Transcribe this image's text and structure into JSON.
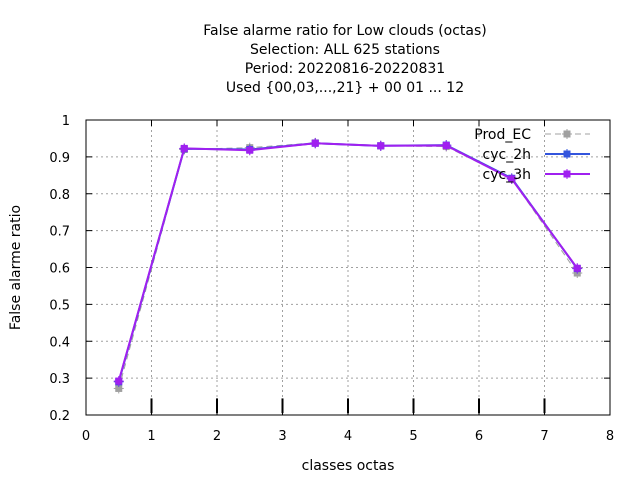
{
  "chart_data": {
    "type": "line",
    "title": [
      "False alarme ratio  for Low clouds (octas)",
      "Selection: ALL    625 stations",
      "Period: 20220816-20220831",
      "Used {00,03,...,21} + 00 01 ... 12"
    ],
    "xlabel": "classes octas",
    "ylabel": "False alarme ratio",
    "xlim": [
      0,
      8
    ],
    "ylim": [
      0.2,
      1.0
    ],
    "xticks": [
      0,
      1,
      2,
      3,
      4,
      5,
      6,
      7,
      8
    ],
    "xtick_labels": [
      "0",
      "1",
      "2",
      "3",
      "4",
      "5",
      "6",
      "7",
      "8"
    ],
    "yticks": [
      0.2,
      0.3,
      0.4,
      0.5,
      0.6,
      0.7,
      0.8,
      0.9,
      1.0
    ],
    "ytick_labels": [
      "0.2",
      "0.3",
      "0.4",
      "0.5",
      "0.6",
      "0.7",
      "0.8",
      "0.9",
      "1"
    ],
    "grid": true,
    "legend_position": "top-right",
    "series": [
      {
        "name": "Prod_EC",
        "color": "#a0a0a0",
        "dash": "dashed",
        "x": [
          0.5,
          1.5,
          2.5,
          3.5,
          4.5,
          5.5,
          6.5,
          7.5
        ],
        "y": [
          0.272,
          0.92,
          0.925,
          0.938,
          0.93,
          0.928,
          0.84,
          0.585
        ]
      },
      {
        "name": "cyc_2h",
        "color": "#3355dd",
        "dash": "solid",
        "x": [
          0.5,
          1.5,
          2.5,
          3.5,
          4.5,
          5.5,
          6.5,
          7.5
        ],
        "y": [
          0.29,
          0.922,
          0.92,
          0.937,
          0.93,
          0.932,
          0.842,
          0.597
        ]
      },
      {
        "name": "cyc_3h",
        "color": "#a020f0",
        "dash": "solid",
        "x": [
          0.5,
          1.5,
          2.5,
          3.5,
          4.5,
          5.5,
          6.5,
          7.5
        ],
        "y": [
          0.292,
          0.923,
          0.918,
          0.937,
          0.93,
          0.931,
          0.84,
          0.598
        ]
      }
    ]
  }
}
